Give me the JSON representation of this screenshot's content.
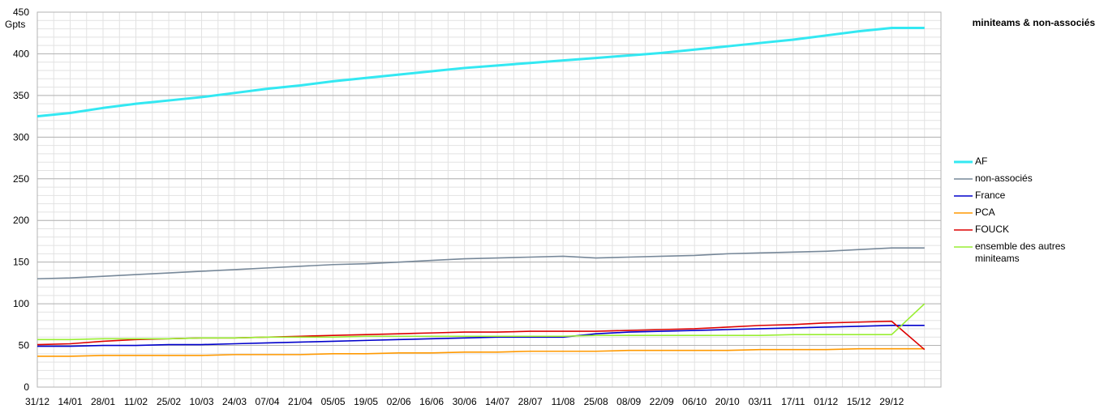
{
  "chart_data": {
    "type": "line",
    "title": "miniteams & non-associés",
    "y_label": "Gpts",
    "categories": [
      "31/12",
      "14/01",
      "28/01",
      "11/02",
      "25/02",
      "10/03",
      "24/03",
      "07/04",
      "21/04",
      "05/05",
      "19/05",
      "02/06",
      "16/06",
      "30/06",
      "14/07",
      "28/07",
      "11/08",
      "25/08",
      "08/09",
      "22/09",
      "06/10",
      "20/10",
      "03/11",
      "17/11",
      "01/12",
      "15/12",
      "29/12",
      null
    ],
    "series": [
      {
        "name": "AF",
        "color": "#33e8f2",
        "values": [
          325,
          329,
          335,
          340,
          344,
          348,
          353,
          358,
          362,
          367,
          371,
          375,
          379,
          383,
          386,
          389,
          392,
          395,
          398,
          401,
          405,
          409,
          413,
          417,
          422,
          427,
          431,
          431
        ]
      },
      {
        "name": "non-associés",
        "color": "#778899",
        "values": [
          130,
          131,
          133,
          135,
          137,
          139,
          141,
          143,
          145,
          147,
          148,
          150,
          152,
          154,
          155,
          156,
          157,
          155,
          156,
          157,
          158,
          160,
          161,
          162,
          163,
          165,
          167,
          167
        ]
      },
      {
        "name": "France",
        "color": "#0000cc",
        "values": [
          49,
          49,
          50,
          50,
          51,
          51,
          52,
          53,
          54,
          55,
          56,
          57,
          58,
          59,
          60,
          60,
          60,
          64,
          66,
          67,
          68,
          69,
          70,
          71,
          72,
          73,
          74,
          74
        ]
      },
      {
        "name": "PCA",
        "color": "#ff9900",
        "values": [
          37,
          37,
          38,
          38,
          38,
          38,
          39,
          39,
          39,
          40,
          40,
          41,
          41,
          42,
          42,
          43,
          43,
          43,
          44,
          44,
          44,
          44,
          45,
          45,
          45,
          46,
          46,
          46
        ]
      },
      {
        "name": "FOUCK",
        "color": "#dd0000",
        "values": [
          51,
          52,
          55,
          57,
          58,
          59,
          59,
          60,
          61,
          62,
          63,
          64,
          65,
          66,
          66,
          67,
          67,
          67,
          68,
          69,
          70,
          72,
          74,
          75,
          77,
          78,
          79,
          45
        ]
      },
      {
        "name": "ensemble des autres miniteams",
        "color": "#99ee33",
        "values": [
          57,
          57,
          58,
          58,
          58,
          59,
          59,
          60,
          60,
          60,
          61,
          61,
          61,
          61,
          61,
          61,
          61,
          62,
          62,
          62,
          62,
          62,
          62,
          63,
          63,
          63,
          63,
          100
        ]
      }
    ],
    "ylim": [
      0,
      450
    ],
    "yticks": [
      0,
      50,
      100,
      150,
      200,
      250,
      300,
      350,
      400,
      450
    ],
    "grid": true,
    "legend": "right"
  }
}
